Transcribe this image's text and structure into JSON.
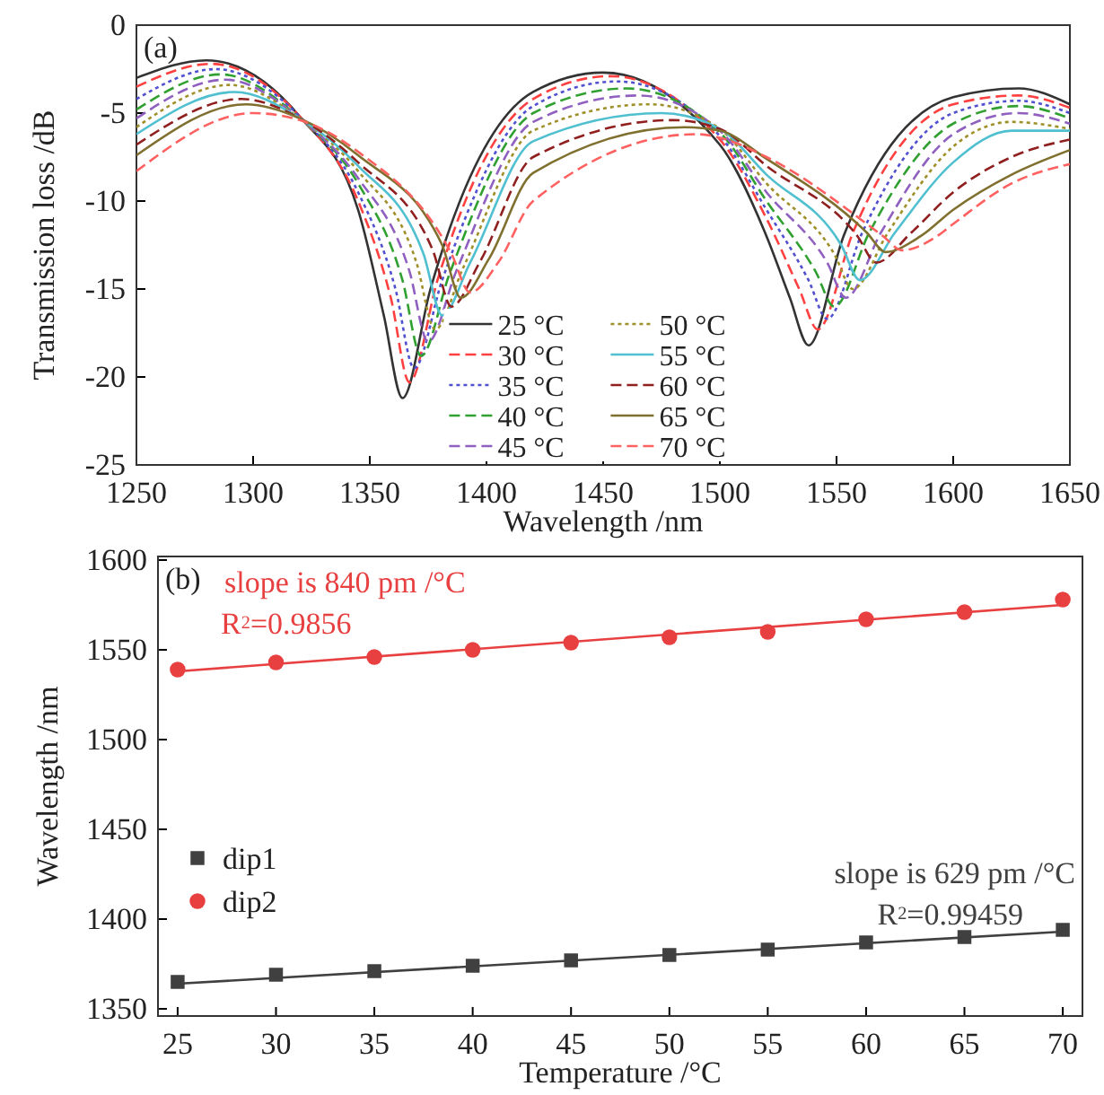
{
  "chart_data": [
    {
      "type": "line",
      "xlabel": "Wavelength /nm",
      "ylabel": "Transmission loss /dB",
      "annotations": [
        "(a)"
      ],
      "xlim": [
        1250,
        1650
      ],
      "ylim": [
        -25,
        0
      ],
      "xticks": [
        1250,
        1300,
        1350,
        1400,
        1450,
        1500,
        1550,
        1600,
        1650
      ],
      "yticks": [
        -25,
        -20,
        -15,
        -10,
        -5,
        0
      ],
      "legend": "bottom",
      "marker": "none",
      "series": [
        {
          "name": "25 °C",
          "color": "#333333",
          "line_style": "solid",
          "x": [
            1250,
            1280,
            1320,
            1345,
            1356,
            1364,
            1376,
            1420,
            1450,
            1500,
            1520,
            1530,
            1538,
            1553,
            1600,
            1628,
            1650
          ],
          "values": [
            -3.0,
            -2.0,
            -5.2,
            -10.5,
            -16.5,
            -21.2,
            -15.0,
            -3.8,
            -2.7,
            -6.8,
            -12.0,
            -15.5,
            -18.2,
            -12.0,
            -4.1,
            -3.6,
            -4.5
          ]
        },
        {
          "name": "30 °C",
          "color": "#ff4040",
          "line_style": "dashed",
          "x": [
            1250,
            1282,
            1320,
            1345,
            1359,
            1367,
            1379,
            1420,
            1453,
            1500,
            1520,
            1534,
            1542,
            1557,
            1600,
            1628,
            1650
          ],
          "values": [
            -3.5,
            -2.2,
            -5.2,
            -10.0,
            -15.5,
            -20.3,
            -14.5,
            -4.2,
            -2.9,
            -6.5,
            -11.0,
            -15.0,
            -17.3,
            -11.8,
            -4.5,
            -4.0,
            -4.7
          ]
        },
        {
          "name": "35 °C",
          "color": "#5050d0",
          "line_style": "dotted",
          "x": [
            1250,
            1284,
            1320,
            1345,
            1361,
            1369,
            1381,
            1420,
            1456,
            1500,
            1520,
            1538,
            1546,
            1561,
            1600,
            1628,
            1650
          ],
          "values": [
            -4.2,
            -2.5,
            -5.2,
            -9.5,
            -15.0,
            -19.5,
            -14.5,
            -4.6,
            -3.2,
            -6.3,
            -10.5,
            -14.5,
            -16.7,
            -11.8,
            -5.0,
            -4.3,
            -5.0
          ]
        },
        {
          "name": "40 °C",
          "color": "#30a030",
          "line_style": "dashed",
          "x": [
            1250,
            1286,
            1320,
            1345,
            1364,
            1372,
            1384,
            1420,
            1460,
            1500,
            1520,
            1541,
            1549,
            1564,
            1600,
            1628,
            1650
          ],
          "values": [
            -4.8,
            -2.8,
            -5.3,
            -9.0,
            -14.5,
            -18.8,
            -14.2,
            -5.0,
            -3.6,
            -6.1,
            -10.0,
            -14.0,
            -16.0,
            -11.8,
            -5.6,
            -4.6,
            -5.3
          ]
        },
        {
          "name": "45 °C",
          "color": "#9060c0",
          "line_style": "dashed",
          "x": [
            1250,
            1288,
            1320,
            1345,
            1367,
            1375,
            1387,
            1420,
            1465,
            1500,
            1520,
            1546,
            1554,
            1569,
            1600,
            1628,
            1650
          ],
          "values": [
            -5.3,
            -3.1,
            -5.3,
            -8.7,
            -14.0,
            -18.0,
            -14.0,
            -5.5,
            -4.0,
            -6.0,
            -9.5,
            -13.5,
            -15.5,
            -11.8,
            -6.2,
            -5.0,
            -5.6
          ]
        },
        {
          "name": "50 °C",
          "color": "#a0902a",
          "line_style": "dotted",
          "x": [
            1250,
            1290,
            1320,
            1345,
            1370,
            1378,
            1390,
            1420,
            1470,
            1500,
            1520,
            1549,
            1557,
            1572,
            1600,
            1625,
            1650
          ],
          "values": [
            -5.8,
            -3.4,
            -5.3,
            -8.3,
            -13.5,
            -17.3,
            -13.8,
            -6.0,
            -4.5,
            -5.9,
            -9.0,
            -13.0,
            -15.0,
            -11.8,
            -6.9,
            -5.5,
            -5.9
          ]
        },
        {
          "name": "55 °C",
          "color": "#50c0d0",
          "line_style": "solid",
          "x": [
            1250,
            1292,
            1320,
            1345,
            1373,
            1381,
            1393,
            1420,
            1475,
            1500,
            1520,
            1552,
            1560,
            1575,
            1600,
            1625,
            1650
          ],
          "values": [
            -6.2,
            -3.8,
            -5.3,
            -8.0,
            -13.0,
            -16.5,
            -13.5,
            -6.6,
            -5.0,
            -5.9,
            -8.5,
            -12.5,
            -14.5,
            -11.8,
            -7.8,
            -6.0,
            -6.0
          ]
        },
        {
          "name": "60 °C",
          "color": "#902020",
          "line_style": "dashed",
          "x": [
            1250,
            1295,
            1320,
            1345,
            1377,
            1385,
            1397,
            1420,
            1480,
            1500,
            1520,
            1559,
            1567,
            1582,
            1600,
            1625,
            1650
          ],
          "values": [
            -6.8,
            -4.2,
            -5.3,
            -7.8,
            -12.8,
            -16.0,
            -13.5,
            -7.5,
            -5.4,
            -5.9,
            -8.0,
            -12.0,
            -13.5,
            -11.8,
            -9.5,
            -7.5,
            -6.5
          ]
        },
        {
          "name": "65 °C",
          "color": "#807030",
          "line_style": "solid",
          "x": [
            1250,
            1297,
            1320,
            1345,
            1381,
            1389,
            1401,
            1420,
            1485,
            1500,
            1520,
            1563,
            1571,
            1586,
            1600,
            1625,
            1650
          ],
          "values": [
            -7.4,
            -4.5,
            -5.3,
            -7.4,
            -12.5,
            -15.5,
            -13.3,
            -8.4,
            -5.8,
            -6.0,
            -7.6,
            -11.8,
            -12.9,
            -12.0,
            -10.5,
            -8.5,
            -7.1
          ]
        },
        {
          "name": "70 °C",
          "color": "#ff6060",
          "line_style": "dashed",
          "x": [
            1250,
            1300,
            1320,
            1345,
            1385,
            1393,
            1405,
            1420,
            1490,
            1500,
            1520,
            1570,
            1578,
            1593,
            1600,
            1625,
            1650
          ],
          "values": [
            -8.3,
            -5.0,
            -5.4,
            -7.2,
            -13.0,
            -15.2,
            -13.5,
            -10.0,
            -6.2,
            -6.4,
            -7.5,
            -12.0,
            -12.8,
            -12.0,
            -11.3,
            -9.0,
            -7.9
          ]
        }
      ]
    },
    {
      "type": "scatter",
      "xlabel": "Temperature /°C",
      "ylabel": "Wavelength /nm",
      "annotations": [
        "(b)",
        "slope is 840 pm /°C",
        "R$^{2}$=0.9856",
        "slope is 629 pm /°C",
        "R$^{2}$=0.99459"
      ],
      "x": [
        25,
        30,
        35,
        40,
        45,
        50,
        55,
        60,
        65,
        70
      ],
      "xlim": [
        24,
        71
      ],
      "ylim": [
        1346,
        1602
      ],
      "xticks": [
        25,
        30,
        35,
        40,
        45,
        50,
        55,
        60,
        65,
        70
      ],
      "yticks": [
        1350,
        1400,
        1450,
        1500,
        1550,
        1600
      ],
      "legend": "left",
      "series": [
        {
          "name": "dip1",
          "color": "#404040",
          "marker": "square",
          "values": [
            1365,
            1369,
            1371,
            1374,
            1377,
            1380,
            1383,
            1387,
            1390,
            1394
          ]
        },
        {
          "name": "dip2",
          "color": "#e84040",
          "marker": "circle",
          "values": [
            1539,
            1543,
            1546,
            1550,
            1554,
            1557,
            1560,
            1567,
            1571,
            1578
          ]
        },
        {
          "type": "line",
          "color": "#404040",
          "marker": "none",
          "x": [
            25,
            70
          ],
          "values": [
            1364,
            1393
          ]
        },
        {
          "type": "line",
          "color": "#e84040",
          "marker": "none",
          "x": [
            25,
            70
          ],
          "values": [
            1538,
            1575
          ]
        }
      ]
    }
  ]
}
